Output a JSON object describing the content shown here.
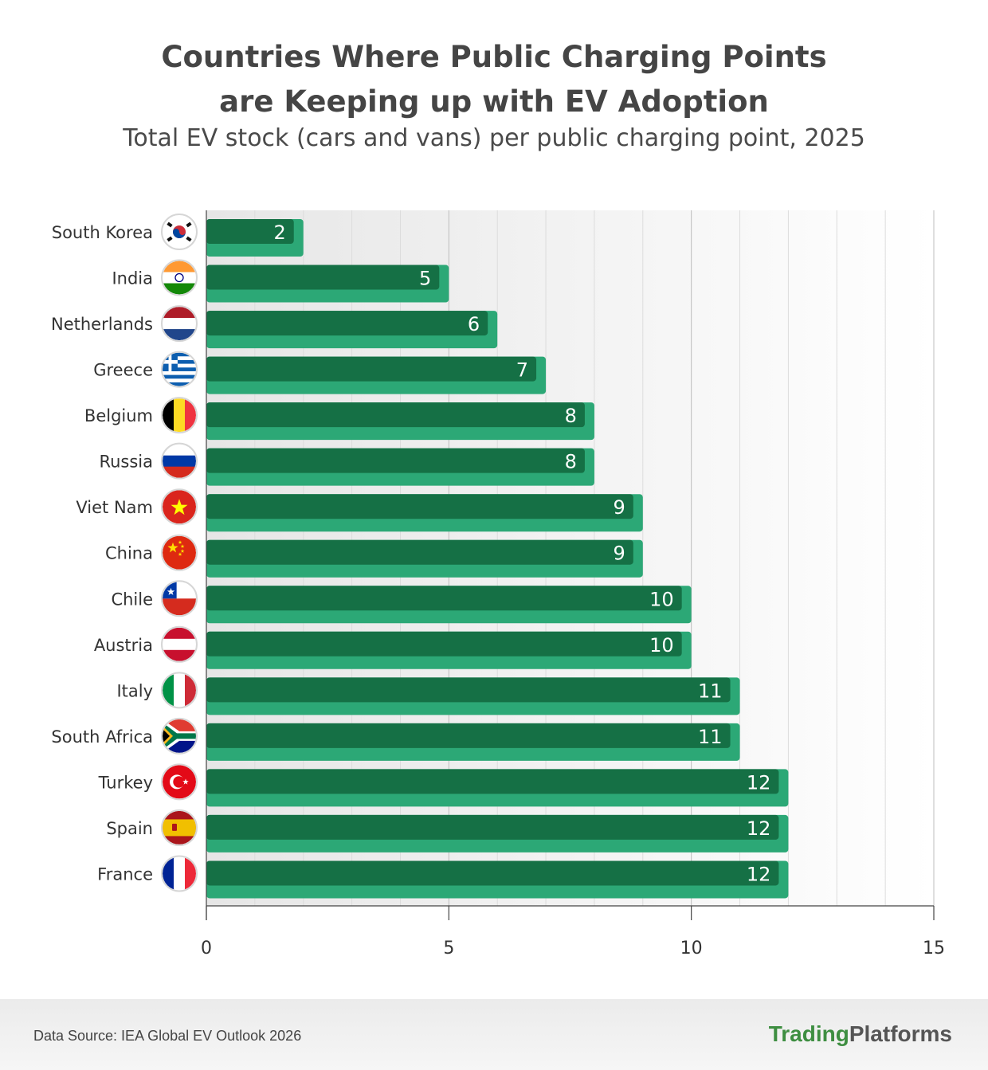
{
  "title_line1": "Countries Where Public Charging Points",
  "title_line2": "are Keeping up with EV Adoption",
  "subtitle": "Total EV stock (cars and vans) per public charging point, 2025",
  "footer": {
    "source": "Data Source: IEA Global EV Outlook 2026",
    "brand_part1": "Trading",
    "brand_part2": "Platforms"
  },
  "colors": {
    "bar_top": "#157045",
    "bar_base": "#2ca876",
    "brand_green": "#3e8e41"
  },
  "chart_data": {
    "type": "bar",
    "orientation": "horizontal",
    "categories": [
      "South Korea",
      "India",
      "Netherlands",
      "Greece",
      "Belgium",
      "Russia",
      "Viet Nam",
      "China",
      "Chile",
      "Austria",
      "Italy",
      "South Africa",
      "Turkey",
      "Spain",
      "France"
    ],
    "values": [
      2,
      5,
      6,
      7,
      8,
      8,
      9,
      9,
      10,
      10,
      11,
      11,
      12,
      12,
      12
    ],
    "xlim": [
      0,
      15
    ],
    "xticks": [
      0,
      5,
      10,
      15
    ],
    "grid": true,
    "data_labels": true,
    "flags": [
      "south-korea-flag-icon",
      "india-flag-icon",
      "netherlands-flag-icon",
      "greece-flag-icon",
      "belgium-flag-icon",
      "russia-flag-icon",
      "viet-nam-flag-icon",
      "china-flag-icon",
      "chile-flag-icon",
      "austria-flag-icon",
      "italy-flag-icon",
      "south-africa-flag-icon",
      "turkey-flag-icon",
      "spain-flag-icon",
      "france-flag-icon"
    ]
  }
}
